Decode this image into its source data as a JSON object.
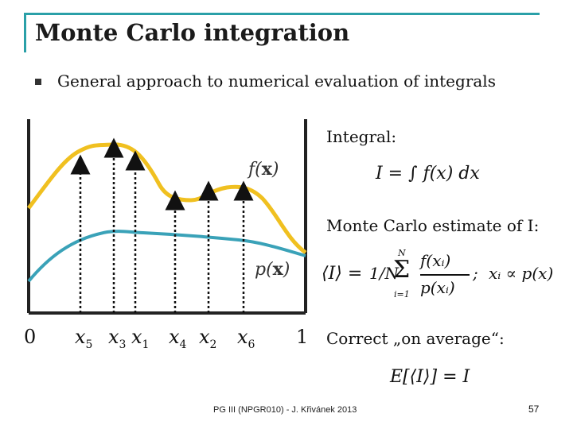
{
  "slide": {
    "title": "Monte Carlo integration",
    "bullet": "General approach to numerical evaluation of integrals",
    "integral_label": "Integral:",
    "mc_label": "Monte Carlo estimate of I:",
    "correct_label": "Correct „on average“:",
    "footer": "PG III (NPGR010) - J. Křivánek 2013",
    "page_number": "57"
  },
  "plot": {
    "f_label_name": "f(",
    "f_label_var": "x",
    "p_label_name": "p(",
    "p_label_var": "x",
    "axis_zero": "0",
    "axis_one": "1",
    "samples": [
      {
        "name": "x",
        "sub": "5"
      },
      {
        "name": "x",
        "sub": "3"
      },
      {
        "name": "x",
        "sub": "1"
      },
      {
        "name": "x",
        "sub": "4"
      },
      {
        "name": "x",
        "sub": "2"
      },
      {
        "name": "x",
        "sub": "6"
      }
    ],
    "colors": {
      "f": "#f0c020",
      "p": "#3aa2b8",
      "axes": "#222222",
      "arrows": "#111111"
    }
  },
  "formulas": {
    "integral": "I = ∫ f(x) dx",
    "estimator_lhs": "⟨I⟩ =",
    "estimator_frac": "1/N",
    "estimator_sum_top": "N",
    "estimator_sum_bottom": "i=1",
    "estimator_num": "f(xᵢ)",
    "estimator_den": "p(xᵢ)",
    "proportional": "xᵢ ∝ p(x)",
    "expectation": "E[⟨I⟩] = I"
  }
}
